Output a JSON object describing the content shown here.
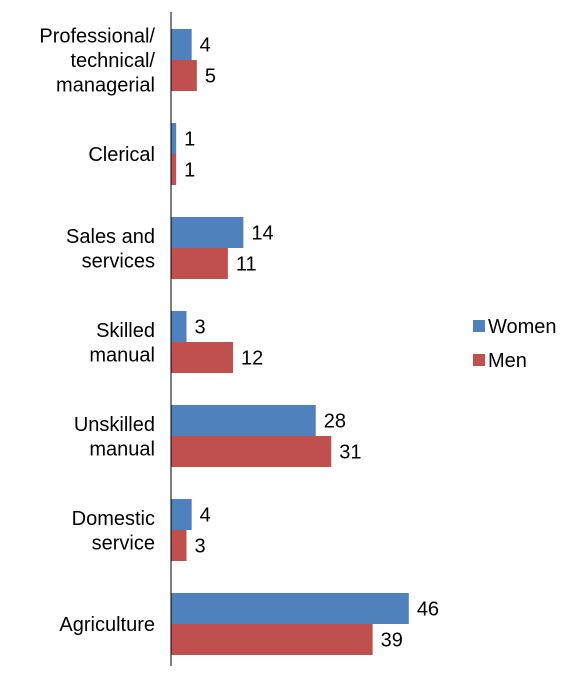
{
  "chart_data": {
    "type": "bar",
    "orientation": "horizontal",
    "categories": [
      "Professional/ technical/ managerial",
      "Clerical",
      "Sales and services",
      "Skilled manual",
      "Unskilled manual",
      "Domestic service",
      "Agriculture"
    ],
    "category_lines": [
      [
        "Professional/",
        "technical/",
        "managerial"
      ],
      [
        "Clerical"
      ],
      [
        "Sales and",
        "services"
      ],
      [
        "Skilled",
        "manual"
      ],
      [
        "Unskilled",
        "manual"
      ],
      [
        "Domestic",
        "service"
      ],
      [
        "Agriculture"
      ]
    ],
    "series": [
      {
        "name": "Women",
        "color": "#4f81bd",
        "values": [
          4,
          1,
          14,
          3,
          28,
          4,
          46
        ]
      },
      {
        "name": "Men",
        "color": "#c0504d",
        "values": [
          5,
          1,
          11,
          12,
          31,
          3,
          39
        ]
      }
    ],
    "data_labels": true,
    "xlim": [
      0,
      50
    ],
    "grid": false,
    "legend_position": "right"
  }
}
